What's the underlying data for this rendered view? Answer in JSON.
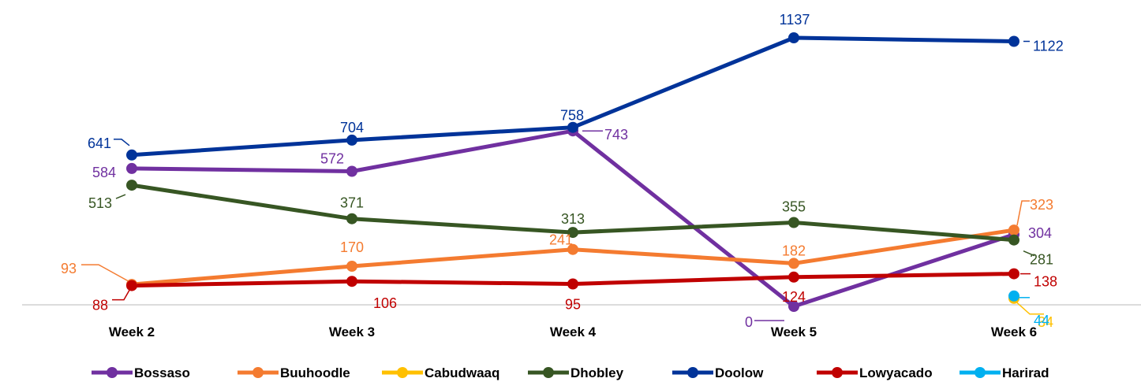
{
  "chart_data": {
    "type": "line",
    "title": "",
    "xlabel": "",
    "ylabel": "",
    "categories": [
      "Week 2",
      "Week 3",
      "Week 4",
      "Week 5",
      "Week 6"
    ],
    "ylim": [
      0,
      1200
    ],
    "grid": false,
    "legend_position": "bottom",
    "series": [
      {
        "name": "Bossaso",
        "color": "#7030A0",
        "values": [
          584,
          572,
          743,
          0,
          304
        ],
        "labels": [
          "584",
          "572",
          "743",
          "0",
          "304"
        ]
      },
      {
        "name": "Buuhoodle",
        "color": "#F47B30",
        "values": [
          93,
          170,
          241,
          182,
          323
        ],
        "labels": [
          "93",
          "170",
          "241",
          "182",
          "323"
        ]
      },
      {
        "name": "Cabudwaaq",
        "color": "#FFC000",
        "values": [
          null,
          null,
          null,
          null,
          34
        ],
        "labels": [
          "",
          "",
          "",
          "",
          "34"
        ]
      },
      {
        "name": "Dhobley",
        "color": "#375623",
        "values": [
          513,
          371,
          313,
          355,
          281
        ],
        "labels": [
          "513",
          "371",
          "313",
          "355",
          "281"
        ]
      },
      {
        "name": "Doolow",
        "color": "#003399",
        "values": [
          641,
          704,
          758,
          1137,
          1122
        ],
        "labels": [
          "641",
          "704",
          "758",
          "1137",
          "1122"
        ]
      },
      {
        "name": "Lowyacado",
        "color": "#C00000",
        "values": [
          88,
          106,
          95,
          124,
          138
        ],
        "labels": [
          "88",
          "106",
          "95",
          "124",
          "138"
        ]
      },
      {
        "name": "Harirad",
        "color": "#00B0F0",
        "values": [
          null,
          null,
          null,
          null,
          44
        ],
        "labels": [
          "",
          "",
          "",
          "",
          "44"
        ]
      }
    ]
  }
}
